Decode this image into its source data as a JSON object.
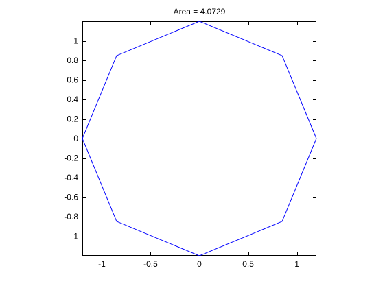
{
  "chart_data": {
    "type": "line",
    "title": "Area = 4.0729",
    "xlabel": "",
    "ylabel": "",
    "xlim": [
      -1.2,
      1.2
    ],
    "ylim": [
      -1.2,
      1.2
    ],
    "grid": false,
    "x_ticks": [
      -1,
      -0.5,
      0,
      0.5,
      1
    ],
    "x_tick_labels": [
      "-1",
      "-0.5",
      "0",
      "0.5",
      "1"
    ],
    "y_ticks": [
      1,
      0.8,
      0.6,
      0.4,
      0.2,
      0,
      -0.2,
      -0.4,
      -0.6,
      -0.8,
      -1
    ],
    "y_tick_labels": [
      "1",
      "0.8",
      "0.6",
      "0.4",
      "0.2",
      "0",
      "-0.2",
      "-0.4",
      "-0.6",
      "-0.8",
      "-1"
    ],
    "series": [
      {
        "color": "#0000ff",
        "x": [
          1.2,
          0.8485,
          0,
          -0.8485,
          -1.2,
          -0.8485,
          0,
          0.8485,
          1.2
        ],
        "y": [
          0,
          0.8485,
          1.2,
          0.8485,
          0,
          -0.8485,
          -1.2,
          -0.8485,
          0
        ]
      }
    ]
  }
}
